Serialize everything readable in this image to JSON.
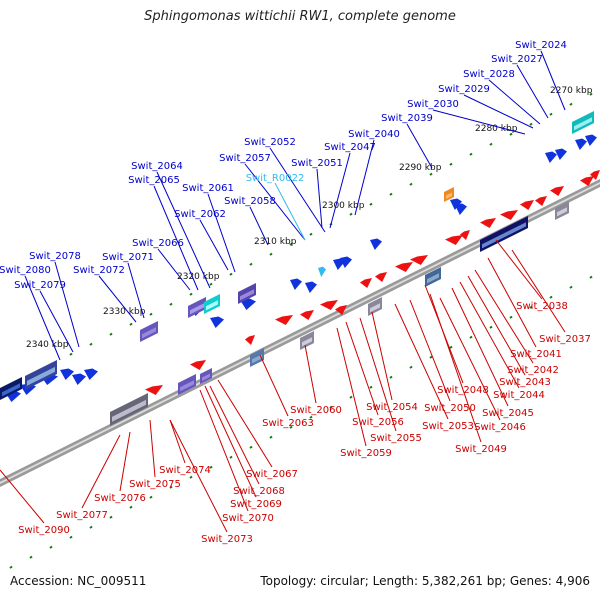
{
  "title": "Sphingomonas wittichii RW1, complete genome",
  "footer": {
    "accession": "Accession: NC_009511",
    "topology": "Topology: circular;",
    "length": "Length: 5,382,261 bp;",
    "genes": "Genes: 4,906"
  },
  "scale_labels": [
    "2270 kbp",
    "2280 kbp",
    "2290 kbp",
    "2300 kbp",
    "2310 kbp",
    "2320 kbp",
    "2330 kbp",
    "2340 kbp"
  ],
  "colors": {
    "forward_gene_label": "#0000cc",
    "reverse_gene_label": "#cc0000",
    "rna_label": "#33bbee",
    "forward_feature": "#1133dd",
    "reverse_feature": "#ee1111",
    "backbone": "#888888",
    "tick": "#117711"
  },
  "forward_genes": [
    "Swit_2024",
    "Swit_2027",
    "Swit_2028",
    "Swit_2029",
    "Swit_2030",
    "Swit_2039",
    "Swit_2040",
    "Swit_2047",
    "Swit_2051",
    "Swit_2052",
    "Swit_2057",
    "Swit_2058",
    "Swit_2061",
    "Swit_2062",
    "Swit_2064",
    "Swit_2065",
    "Swit_2066",
    "Swit_2071",
    "Swit_2072",
    "Swit_2078",
    "Swit_2079",
    "Swit_2080"
  ],
  "rna_genes": [
    "Swit_R0022"
  ],
  "reverse_genes": [
    "Swit_2037",
    "Swit_2038",
    "Swit_2041",
    "Swit_2042",
    "Swit_2043",
    "Swit_2044",
    "Swit_2045",
    "Swit_2046",
    "Swit_2048",
    "Swit_2049",
    "Swit_2050",
    "Swit_2053",
    "Swit_2054",
    "Swit_2055",
    "Swit_2056",
    "Swit_2059",
    "Swit_2060",
    "Swit_2063",
    "Swit_2067",
    "Swit_2068",
    "Swit_2069",
    "Swit_2070",
    "Swit_2073",
    "Swit_2074",
    "Swit_2075",
    "Swit_2076",
    "Swit_2077",
    "Swit_2090"
  ]
}
